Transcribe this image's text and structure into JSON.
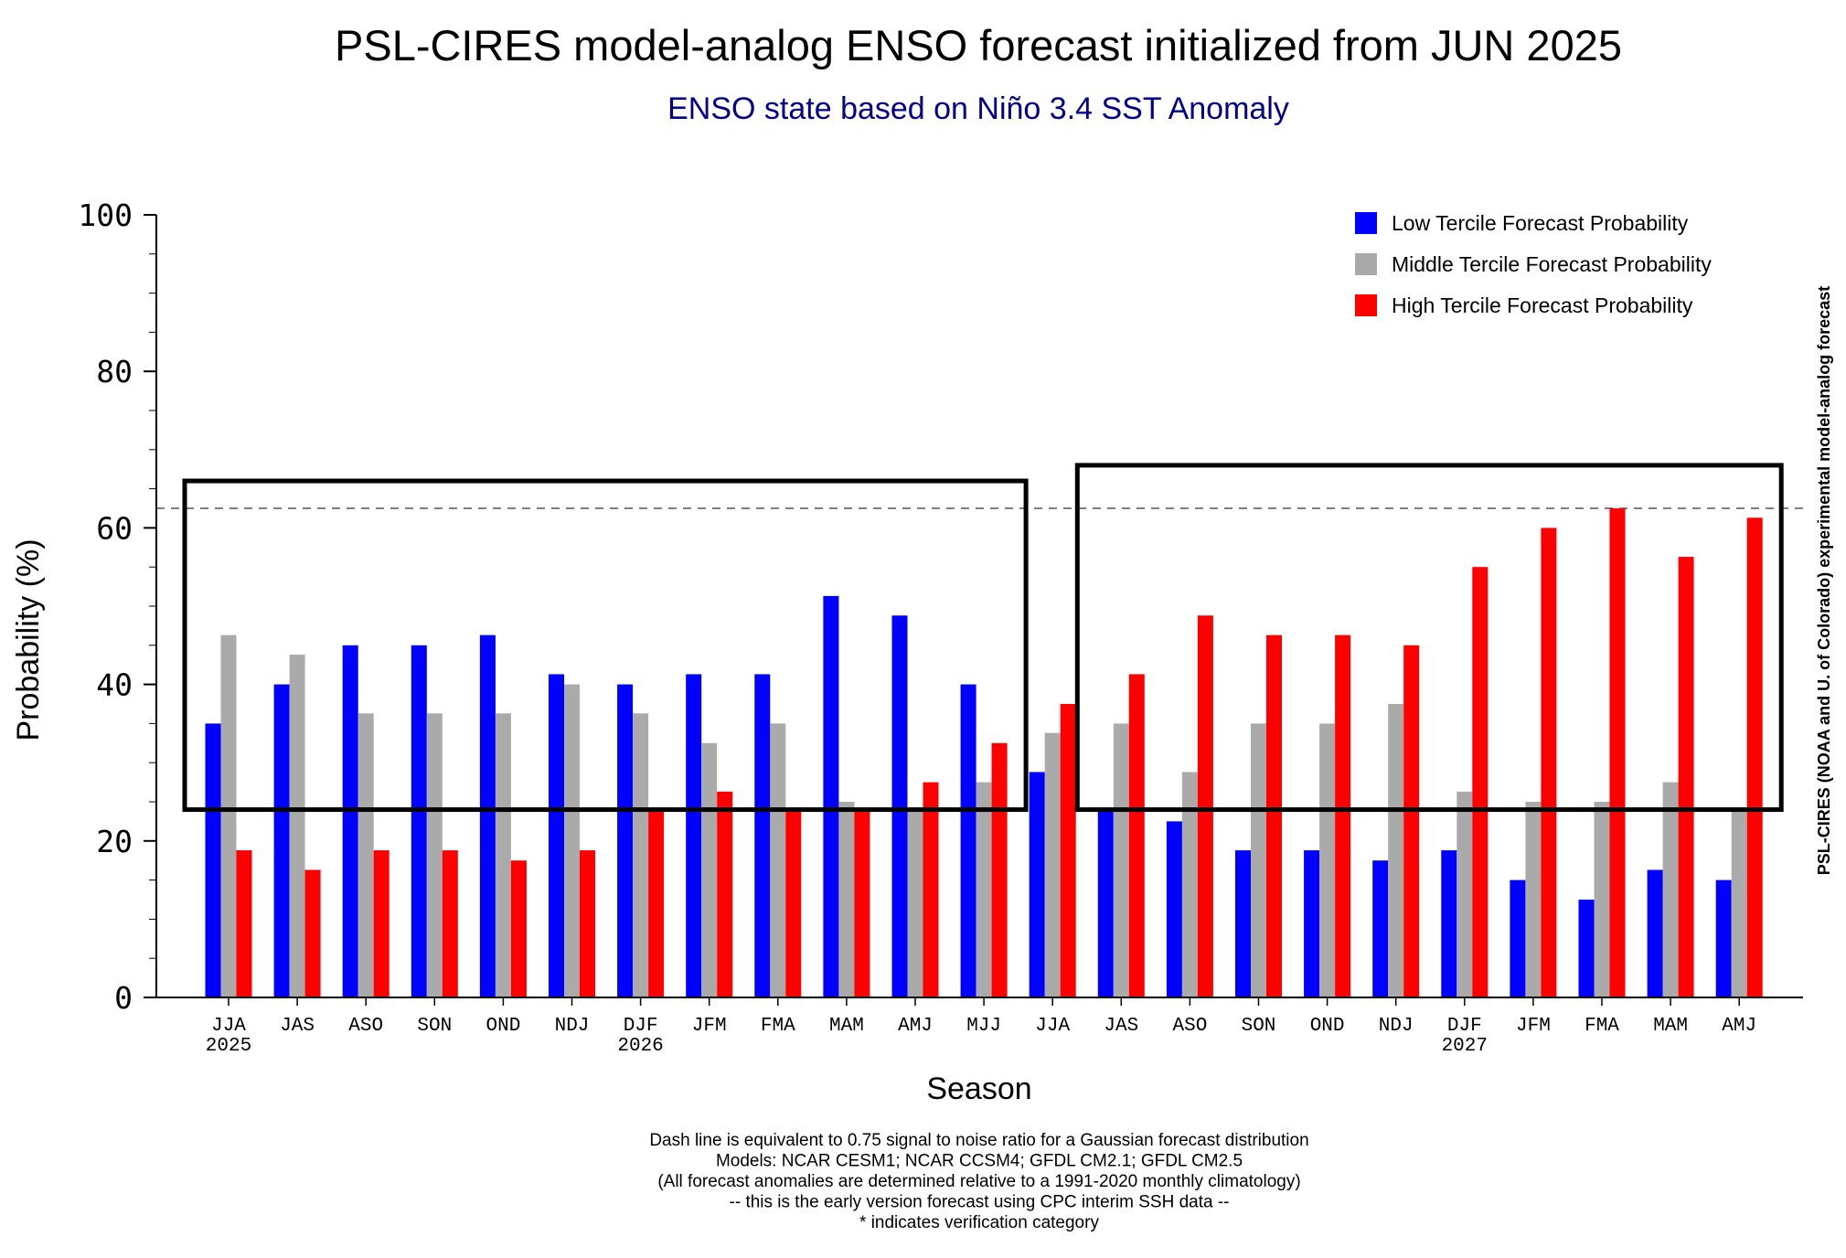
{
  "chart_data": {
    "type": "bar",
    "title": "PSL-CIRES model-analog ENSO forecast initialized from JUN 2025",
    "subtitle": "ENSO state based on Niño 3.4 SST Anomaly",
    "xlabel": "Season",
    "ylabel": "Probability (%)",
    "side_label": "PSL-CIRES (NOAA and U. of Colorado) experimental model-analog forecast",
    "ylim": [
      0,
      100
    ],
    "yticks": [
      "0",
      "20",
      "40",
      "60",
      "80",
      "100"
    ],
    "categories": [
      "JJA",
      "JAS",
      "ASO",
      "SON",
      "OND",
      "NDJ",
      "DJF",
      "JFM",
      "FMA",
      "MAM",
      "AMJ",
      "MJJ",
      "JJA",
      "JAS",
      "ASO",
      "SON",
      "OND",
      "NDJ",
      "DJF",
      "JFM",
      "FMA",
      "MAM",
      "AMJ"
    ],
    "year_labels": [
      "2025",
      "",
      "",
      "",
      "",
      "",
      "2026",
      "",
      "",
      "",
      "",
      "",
      "",
      "",
      "",
      "",
      "",
      "",
      "2027",
      "",
      "",
      "",
      ""
    ],
    "series": [
      {
        "name": "Low Tercile Forecast Probability",
        "color": "#0000ff",
        "values": [
          35,
          40,
          45,
          45,
          46.3,
          41.3,
          40,
          41.3,
          41.3,
          51.3,
          48.8,
          40,
          28.8,
          23.8,
          22.5,
          18.8,
          18.8,
          17.5,
          18.8,
          15,
          12.5,
          16.3,
          15
        ]
      },
      {
        "name": "Middle Tercile Forecast Probability",
        "color": "#aaaaaa",
        "values": [
          46.3,
          43.8,
          36.3,
          36.3,
          36.3,
          40,
          36.3,
          32.5,
          35,
          25,
          23.8,
          27.5,
          33.8,
          35,
          28.8,
          35,
          35,
          37.5,
          26.3,
          25,
          25,
          27.5,
          23.8
        ]
      },
      {
        "name": "High Tercile Forecast Probability",
        "color": "#ff0000",
        "values": [
          18.8,
          16.3,
          18.8,
          18.8,
          17.5,
          18.8,
          23.8,
          26.3,
          23.8,
          23.8,
          27.5,
          32.5,
          37.5,
          41.3,
          48.8,
          46.3,
          46.3,
          45,
          55,
          60,
          62.5,
          56.3,
          61.3
        ]
      }
    ],
    "dashed_line_value": 62.5,
    "boxes": [
      {
        "from_index": 0,
        "to_index": 11,
        "y_low": 24,
        "y_high": 66
      },
      {
        "from_index": 13,
        "to_index": 22,
        "y_low": 24,
        "y_high": 68
      }
    ],
    "legend_position": "top-right",
    "footnotes": [
      "Dash line is equivalent to 0.75 signal to noise ratio for a Gaussian forecast distribution",
      "Models: NCAR CESM1; NCAR CCSM4; GFDL CM2.1; GFDL CM2.5",
      "(All forecast anomalies are determined relative to a 1991-2020 monthly climatology)",
      "-- this is the early version forecast using CPC interim SSH data --",
      "* indicates verification category"
    ]
  }
}
